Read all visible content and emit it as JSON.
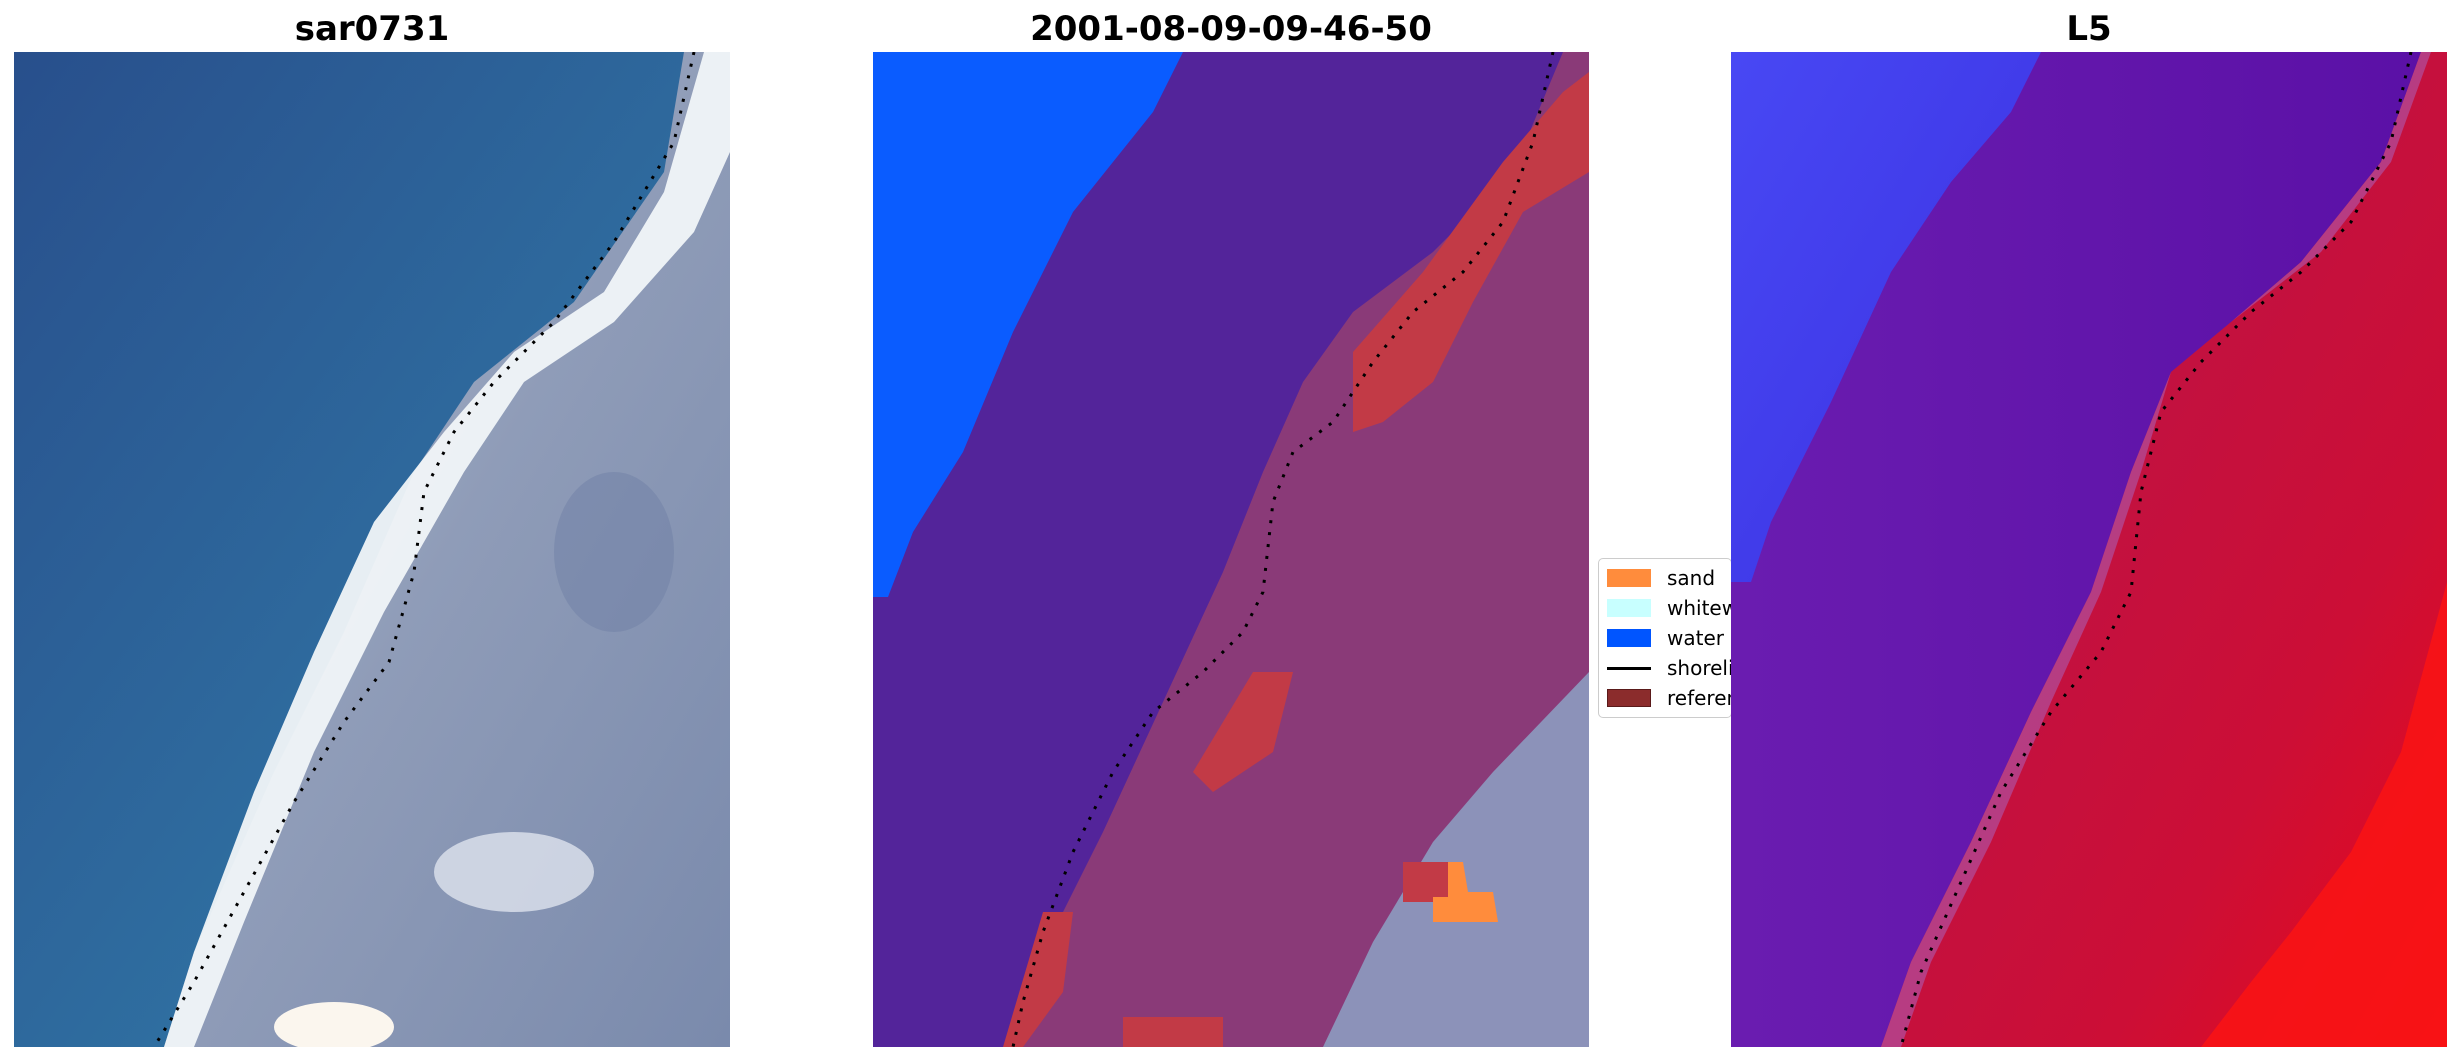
{
  "panels": [
    {
      "title": "sar0731"
    },
    {
      "title": "2001-08-09-09-46-50"
    },
    {
      "title": "L5"
    }
  ],
  "legend": {
    "items": [
      {
        "label": "sand",
        "color": "#ff8c3c"
      },
      {
        "label": "whitewater",
        "color": "#c8ffff"
      },
      {
        "label": "water",
        "color": "#0055ff"
      },
      {
        "label": "shoreline",
        "color": "#000000"
      },
      {
        "label": "reference",
        "color": "#8b2c2c"
      }
    ]
  },
  "colors": {
    "water_rgb": "#2f6a9e",
    "whitewater": "#f4f8fa",
    "land_rgb": "#8f9cb8",
    "class_water": "#0a5cff",
    "class_sea": "#53249a",
    "class_land_overlay": "#8a3a78",
    "class_reference": "#c23a46",
    "l5_blue": "#3a3af0",
    "l5_purple": "#5a14a8",
    "l5_red": "#c8103a"
  }
}
